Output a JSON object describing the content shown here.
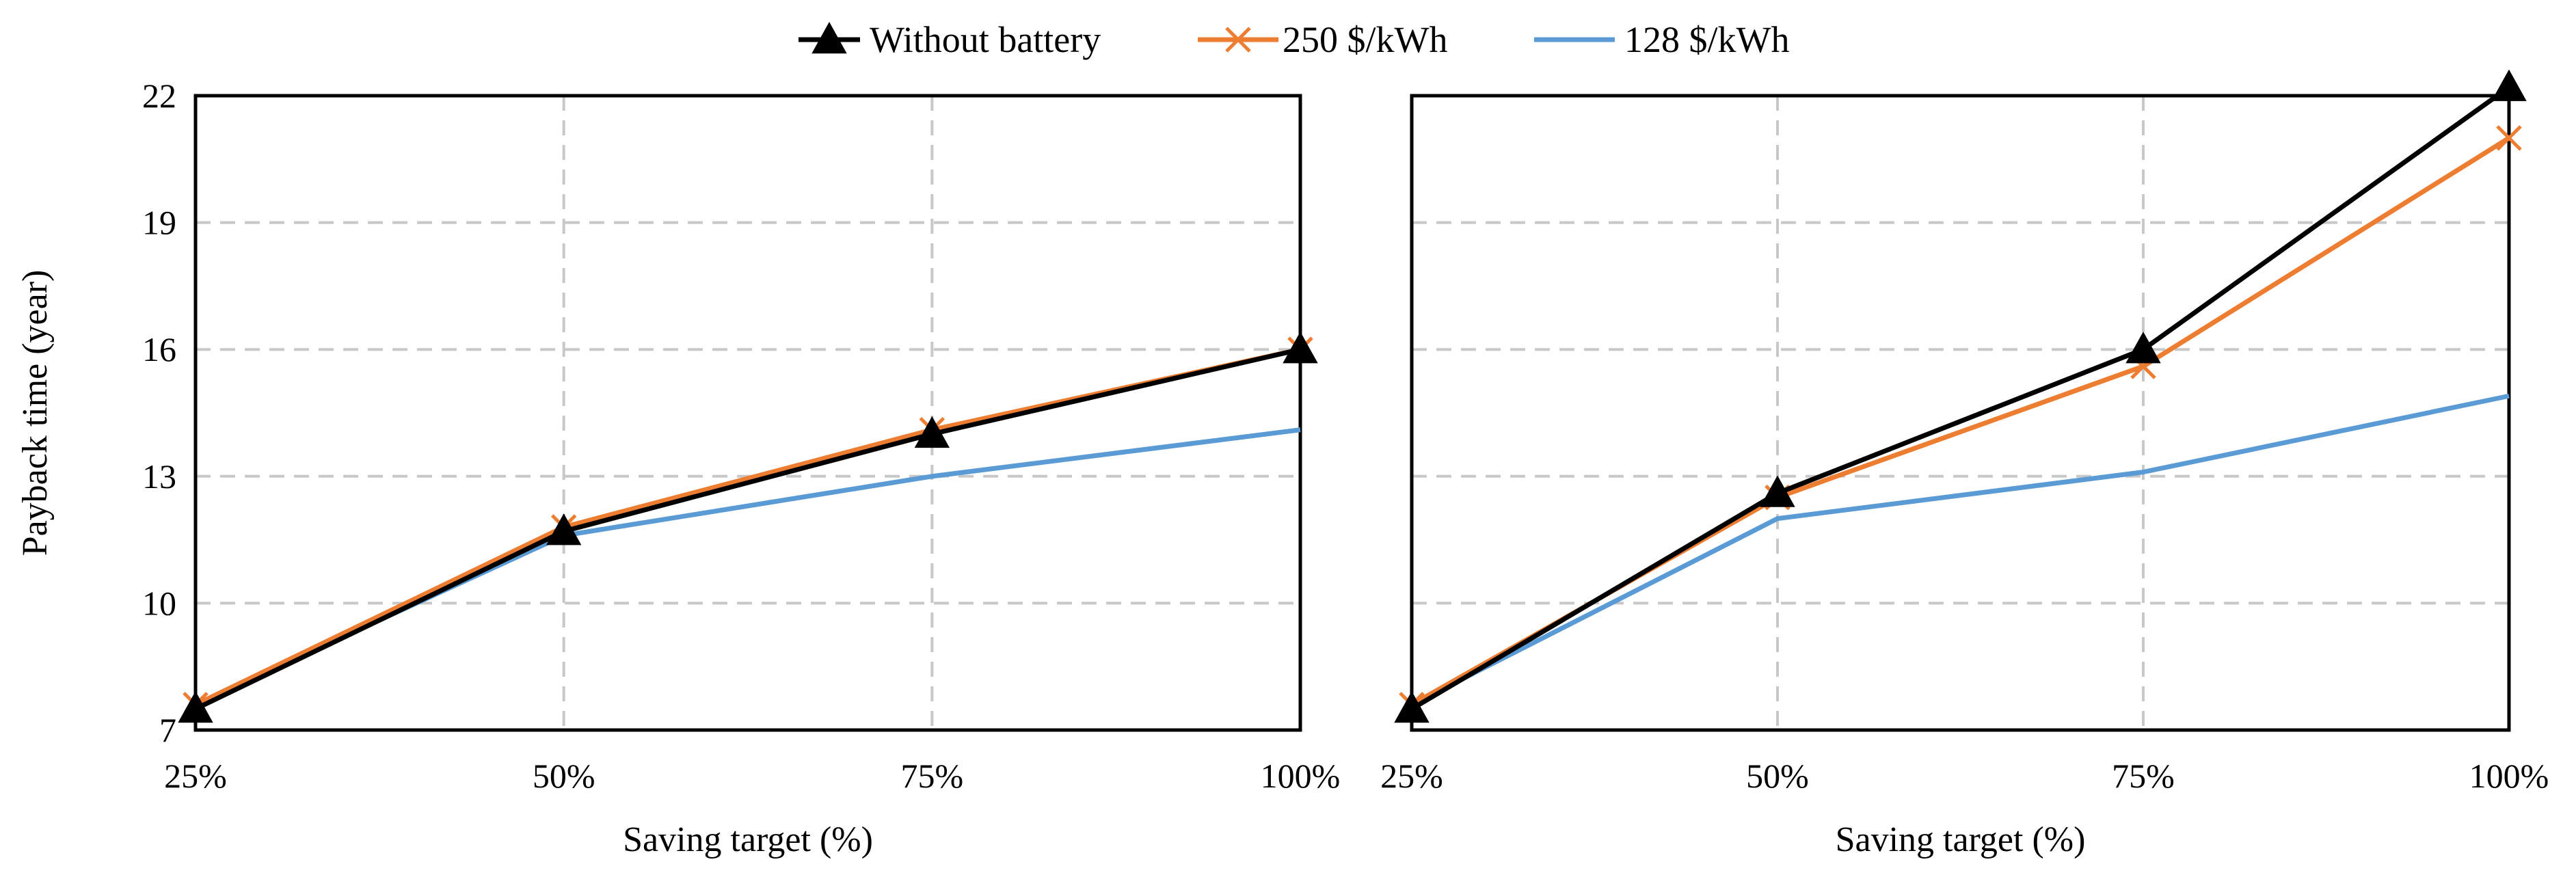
{
  "legend": [
    {
      "name": "Without battery",
      "color": "#000000",
      "marker": "triangle"
    },
    {
      "name": "250 $/kWh",
      "color": "#ED7D31",
      "marker": "x"
    },
    {
      "name": "128 $/kWh",
      "color": "#5B9BD5",
      "marker": "none"
    }
  ],
  "chart_data": [
    {
      "type": "line",
      "categories": [
        "25%",
        "50%",
        "75%",
        "100%"
      ],
      "xlabel": "Saving target (%)",
      "ylabel": "Payback time (year)",
      "ylim": [
        7,
        22
      ],
      "yticks": [
        "22",
        "19",
        "16",
        "13",
        "10",
        "7"
      ],
      "series": [
        {
          "name": "Without battery",
          "color": "#000000",
          "marker": "triangle",
          "values": [
            7.5,
            11.7,
            14.0,
            16.0
          ]
        },
        {
          "name": "250 $/kWh",
          "color": "#ED7D31",
          "marker": "x",
          "values": [
            7.6,
            11.8,
            14.1,
            16.0
          ]
        },
        {
          "name": "128 $/kWh",
          "color": "#5B9BD5",
          "marker": "none",
          "values": [
            7.6,
            11.6,
            13.0,
            14.1
          ]
        }
      ]
    },
    {
      "type": "line",
      "categories": [
        "25%",
        "50%",
        "75%",
        "100%"
      ],
      "xlabel": "Saving target (%)",
      "ylabel": "",
      "ylim": [
        7,
        22
      ],
      "yticks": [],
      "series": [
        {
          "name": "Without battery",
          "color": "#000000",
          "marker": "triangle",
          "values": [
            7.5,
            12.6,
            16.0,
            22.2
          ]
        },
        {
          "name": "250 $/kWh",
          "color": "#ED7D31",
          "marker": "x",
          "values": [
            7.6,
            12.5,
            15.6,
            21.0
          ]
        },
        {
          "name": "128 $/kWh",
          "color": "#5B9BD5",
          "marker": "none",
          "values": [
            7.6,
            12.0,
            13.1,
            14.9
          ]
        }
      ]
    }
  ]
}
